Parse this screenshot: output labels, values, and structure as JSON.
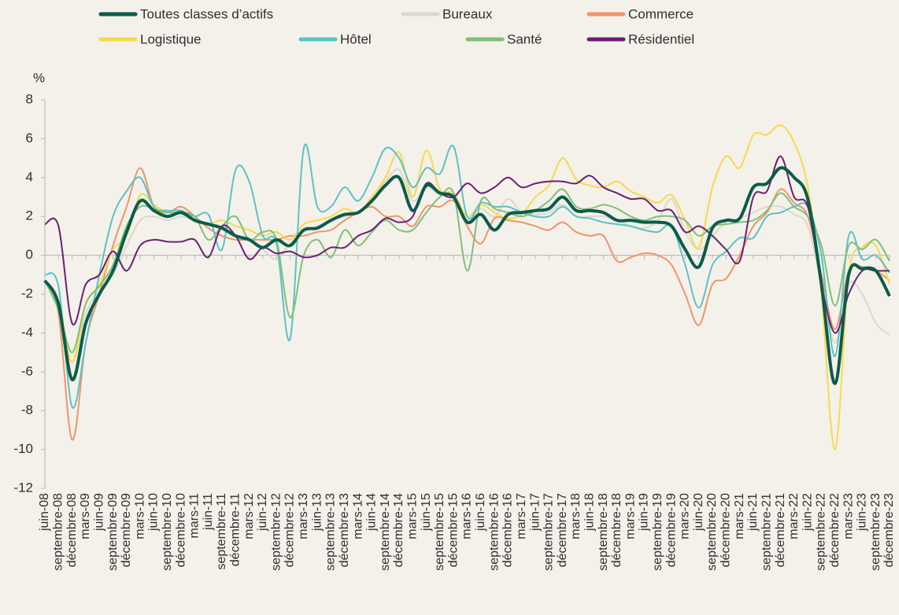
{
  "chart_data": {
    "type": "line",
    "ylabel": "%",
    "categories": [
      "juin-08",
      "septembre-08",
      "décembre-08",
      "mars-09",
      "juin-09",
      "septembre-09",
      "décembre-09",
      "mars-10",
      "juin-10",
      "septembre-10",
      "décembre-10",
      "mars-11",
      "juin-11",
      "septembre-11",
      "décembre-11",
      "mars-12",
      "juin-12",
      "septembre-12",
      "décembre-12",
      "mars-13",
      "juin-13",
      "septembre-13",
      "décembre-13",
      "mars-14",
      "juin-14",
      "septembre-14",
      "décembre-14",
      "mars-15",
      "juin-15",
      "septembre-15",
      "décembre-15",
      "mars-16",
      "juin-16",
      "septembre-16",
      "décembre-16",
      "mars-17",
      "juin-17",
      "septembre-17",
      "décembre-17",
      "mars-18",
      "juin-18",
      "septembre-18",
      "décembre-18",
      "mars-19",
      "juin-19",
      "septembre-19",
      "décembre-19",
      "mars-20",
      "juin-20",
      "septembre-20",
      "décembre-20",
      "mars-21",
      "juin-21",
      "septembre-21",
      "décembre-21",
      "mars-22",
      "juin-22",
      "septembre-22",
      "décembre-22",
      "mars-23",
      "juin-23",
      "septembre-23",
      "décembre-23"
    ],
    "series": [
      {
        "name": "Toutes classes d’actifs",
        "color": "#0b5c4a",
        "values": [
          -1.3,
          -2.5,
          -6.4,
          -3.5,
          -2.0,
          -0.8,
          1.2,
          2.8,
          2.3,
          2.0,
          2.2,
          1.8,
          1.6,
          1.4,
          1.0,
          0.8,
          0.4,
          0.8,
          0.5,
          1.3,
          1.4,
          1.8,
          2.1,
          2.2,
          2.8,
          3.6,
          4.0,
          2.3,
          3.6,
          3.2,
          3.0,
          1.7,
          2.1,
          1.3,
          2.1,
          2.2,
          2.3,
          2.4,
          3.0,
          2.3,
          2.3,
          2.2,
          1.8,
          1.8,
          1.7,
          1.7,
          1.5,
          0.3,
          -0.6,
          1.4,
          1.8,
          1.9,
          3.5,
          3.7,
          4.5,
          4.0,
          2.9,
          -1.5,
          -6.6,
          -1.0,
          -0.7,
          -0.8,
          -2.1
        ]
      },
      {
        "name": "Bureaux",
        "color": "#dcd8cd",
        "values": [
          -1.3,
          -2.8,
          -5.5,
          -3,
          -1.8,
          -1.0,
          0.5,
          1.8,
          2.0,
          1.8,
          2.0,
          1.8,
          1.6,
          1.5,
          1.0,
          0.8,
          0.3,
          -0.2,
          0.6,
          1.2,
          1.5,
          1.8,
          2.0,
          2.2,
          2.8,
          3.8,
          4.4,
          2.8,
          3.5,
          3.1,
          3.0,
          1.8,
          2.4,
          2.0,
          2.9,
          2.2,
          2.1,
          2.2,
          2.6,
          2.0,
          2.0,
          2.0,
          1.8,
          1.5,
          1.4,
          1.8,
          2.9,
          1.2,
          0.3,
          1.0,
          1.7,
          1.9,
          2.2,
          2.5,
          2.5,
          2.1,
          1.5,
          -1.5,
          -4.5,
          -1.5,
          -2.0,
          -3.5,
          -4.1
        ]
      },
      {
        "name": "Commerce",
        "color": "#f0956a",
        "values": [
          -1.3,
          -3.0,
          -9.5,
          -4.5,
          -2.0,
          0.5,
          2.5,
          4.5,
          2.5,
          2.2,
          2.5,
          2.0,
          1.4,
          1.0,
          0.8,
          0.8,
          0.8,
          0.8,
          1.0,
          1.0,
          1.2,
          1.3,
          1.8,
          2.2,
          2.5,
          2.0,
          2.0,
          1.5,
          2.5,
          2.5,
          2.8,
          1.5,
          0.6,
          1.9,
          1.8,
          1.7,
          1.5,
          1.3,
          1.7,
          1.2,
          1.0,
          1.0,
          -0.3,
          -0.1,
          0.1,
          0.0,
          -0.5,
          -2.0,
          -3.6,
          -1.5,
          -1.2,
          0.0,
          1.5,
          2.2,
          3.4,
          2.7,
          2.0,
          -1.0,
          -3.8,
          -0.8,
          -0.6,
          -0.8,
          -1.3
        ]
      },
      {
        "name": "Logistique",
        "color": "#f7d94c",
        "values": [
          -1.3,
          -2.5,
          -5.5,
          -2.5,
          -1.5,
          0.3,
          1.0,
          3.1,
          2.6,
          2.2,
          2.2,
          1.8,
          1.6,
          1.8,
          1.5,
          1.3,
          1.0,
          1.2,
          0.8,
          1.6,
          1.8,
          2.0,
          2.4,
          2.2,
          3.0,
          4.0,
          5.3,
          3.0,
          5.4,
          3.4,
          3.2,
          2.0,
          2.6,
          2.2,
          1.9,
          2.1,
          3.0,
          3.6,
          5.0,
          3.9,
          3.6,
          3.5,
          3.8,
          3.3,
          3.0,
          2.7,
          3.1,
          1.8,
          0.4,
          3.5,
          5.1,
          4.5,
          6.2,
          6.2,
          6.7,
          5.8,
          3.5,
          -2.0,
          -10.0,
          -1.0,
          0.4,
          0.5,
          -1.5
        ]
      },
      {
        "name": "Hôtel",
        "color": "#5bc2c6",
        "values": [
          -1.0,
          -1.6,
          -7.8,
          -4.5,
          -1.0,
          2.0,
          3.3,
          4.0,
          2.5,
          2.3,
          2.3,
          2.0,
          2.1,
          0.3,
          4.4,
          3.8,
          1.0,
          0.6,
          -4.3,
          5.5,
          2.5,
          2.5,
          3.5,
          2.8,
          4.0,
          5.5,
          5.0,
          3.5,
          4.5,
          4.2,
          5.6,
          2.0,
          2.7,
          2.5,
          2.5,
          2.2,
          2.0,
          2.0,
          2.5,
          2.0,
          1.9,
          1.7,
          1.6,
          1.5,
          1.3,
          1.2,
          1.5,
          -0.5,
          -2.7,
          -0.5,
          0.2,
          0.9,
          0.9,
          2.0,
          2.2,
          2.5,
          2.5,
          0.0,
          -5.2,
          1.0,
          -0.2,
          0.0,
          -0.9
        ]
      },
      {
        "name": "Santé",
        "color": "#7fc07a",
        "values": [
          -1.3,
          -2.8,
          -5.0,
          -2.5,
          -1.6,
          -0.5,
          1.5,
          2.5,
          2.4,
          2.2,
          2.2,
          2.0,
          0.8,
          1.5,
          2.0,
          0.8,
          1.2,
          0.8,
          -3.2,
          0.0,
          0.8,
          -0.1,
          1.3,
          0.5,
          1.2,
          1.8,
          1.3,
          1.3,
          2.2,
          3.0,
          3.2,
          -0.8,
          2.8,
          2.4,
          2.2,
          2.0,
          2.3,
          2.8,
          3.4,
          2.5,
          2.4,
          2.6,
          2.4,
          2.0,
          1.8,
          2.0,
          2.0,
          1.8,
          1.0,
          1.5,
          1.6,
          1.7,
          1.8,
          2.3,
          3.2,
          2.5,
          2.0,
          0.5,
          -2.6,
          0.5,
          0.3,
          0.8,
          -0.3
        ]
      },
      {
        "name": "Résidentiel",
        "color": "#6b1f73",
        "values": [
          1.6,
          1.5,
          -3.5,
          -1.5,
          -1.0,
          0.2,
          -0.8,
          0.5,
          0.8,
          0.7,
          0.7,
          0.8,
          -0.1,
          1.5,
          1.0,
          -0.2,
          0.4,
          0.1,
          0.2,
          -0.1,
          0.0,
          0.4,
          0.4,
          1.0,
          1.3,
          1.9,
          1.7,
          2.0,
          3.7,
          3.2,
          3.0,
          3.7,
          3.2,
          3.5,
          4.0,
          3.5,
          3.7,
          3.8,
          3.8,
          3.7,
          4.1,
          3.5,
          3.2,
          2.9,
          2.9,
          2.3,
          2.3,
          1.2,
          1.5,
          1.0,
          0.3,
          -0.3,
          3.0,
          3.3,
          5.1,
          3.0,
          2.5,
          -1.5,
          -4.0,
          -2.0,
          -0.8,
          -0.8,
          -0.8
        ]
      }
    ],
    "ylim": [
      -12,
      8
    ],
    "yticks": [
      -12,
      -10,
      -8,
      -6,
      -4,
      -2,
      0,
      2,
      4,
      6,
      8
    ]
  }
}
